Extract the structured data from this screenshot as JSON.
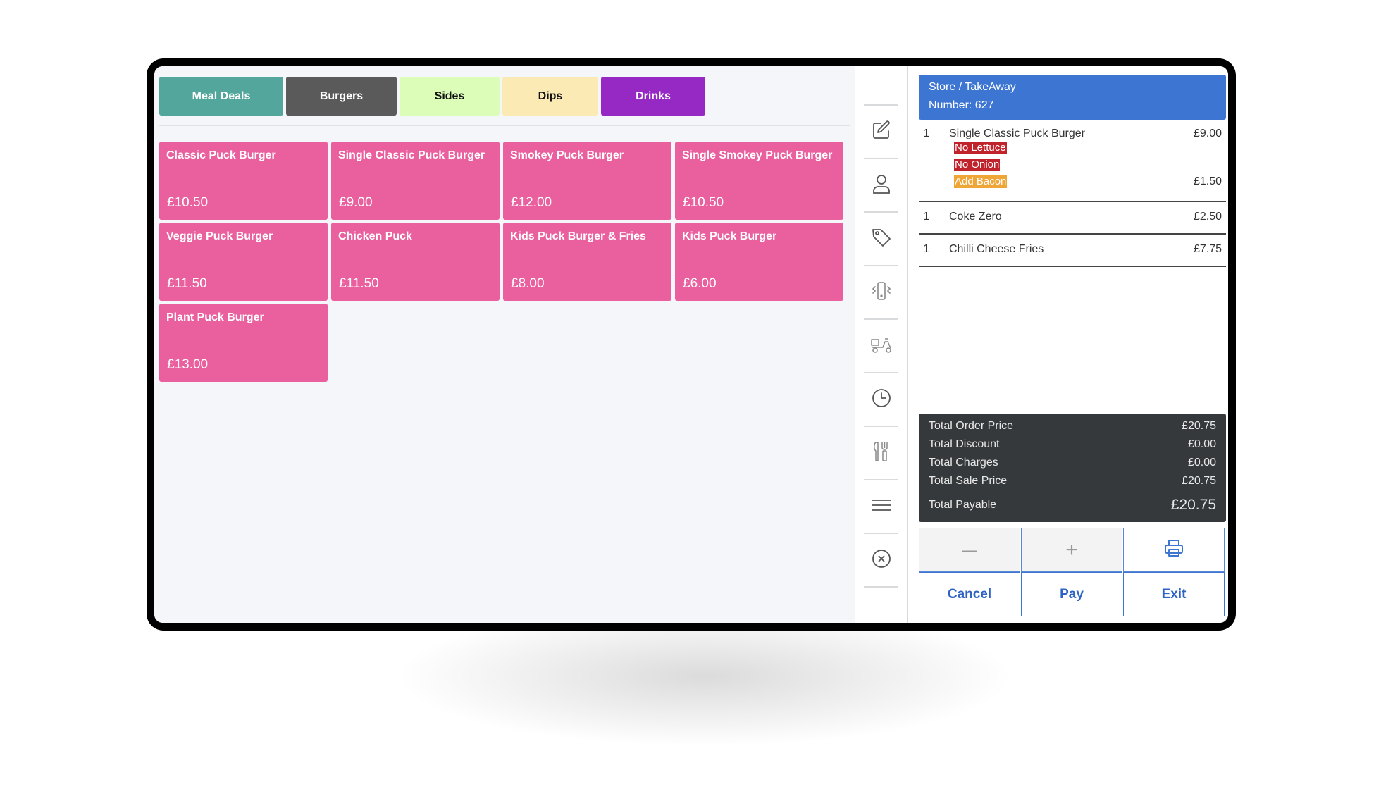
{
  "tabs": [
    {
      "label": "Meal Deals",
      "bg": "#52a69b",
      "color": "#ffffff"
    },
    {
      "label": "Burgers",
      "bg": "#5a5a5a",
      "color": "#ffffff"
    },
    {
      "label": "Sides",
      "bg": "#dcfdb8",
      "color": "#111111"
    },
    {
      "label": "Dips",
      "bg": "#fbeab4",
      "color": "#111111"
    },
    {
      "label": "Drinks",
      "bg": "#9628c3",
      "color": "#ffffff"
    }
  ],
  "products": [
    {
      "name": "Classic Puck Burger",
      "price": "£10.50"
    },
    {
      "name": "Single Classic Puck Burger",
      "price": "£9.00"
    },
    {
      "name": "Smokey Puck Burger",
      "price": "£12.00"
    },
    {
      "name": "Single Smokey Puck Burger",
      "price": "£10.50"
    },
    {
      "name": "Veggie Puck Burger",
      "price": "£11.50"
    },
    {
      "name": "Chicken Puck",
      "price": "£11.50"
    },
    {
      "name": "Kids Puck Burger & Fries",
      "price": "£8.00"
    },
    {
      "name": "Kids Puck Burger",
      "price": "£6.00"
    },
    {
      "name": "Plant Puck Burger",
      "price": "£13.00"
    }
  ],
  "toolbar": {
    "icons": [
      "edit-icon",
      "customer-icon",
      "tag-icon",
      "vibrate-phone-icon",
      "delivery-scooter-icon",
      "clock-icon",
      "cutlery-icon",
      "menu-icon",
      "cancel-circle-icon"
    ]
  },
  "order": {
    "type": "Store / TakeAway",
    "number": "Number: 627",
    "items": [
      {
        "qty": "1",
        "name": "Single Classic Puck Burger",
        "price": "£9.00",
        "modifiers": [
          {
            "label": "No Lettuce",
            "price": ""
          },
          {
            "label": "No Onion",
            "price": ""
          },
          {
            "label": "Add Bacon",
            "price": "£1.50"
          }
        ]
      },
      {
        "qty": "1",
        "name": "Coke Zero",
        "price": "£2.50",
        "modifiers": []
      },
      {
        "qty": "1",
        "name": "Chilli Cheese Fries",
        "price": "£7.75",
        "modifiers": []
      }
    ]
  },
  "totals": [
    {
      "label": "Total Order Price",
      "value": "£20.75"
    },
    {
      "label": "Total Discount",
      "value": "£0.00"
    },
    {
      "label": "Total Charges",
      "value": "£0.00"
    },
    {
      "label": "Total Sale Price",
      "value": "£20.75"
    },
    {
      "label": "Total Payable",
      "value": "£20.75"
    }
  ],
  "actions": {
    "minus": "—",
    "plus": "+",
    "cancel": "Cancel",
    "pay": "Pay",
    "exit": "Exit"
  },
  "colors": {
    "product": "#ea5f9e",
    "order_header": "#3d75d3",
    "totals_bg": "#36393c",
    "modifier_remove": "#c0232c",
    "modifier_add": "#f0a637",
    "action_text": "#2e63c4"
  }
}
